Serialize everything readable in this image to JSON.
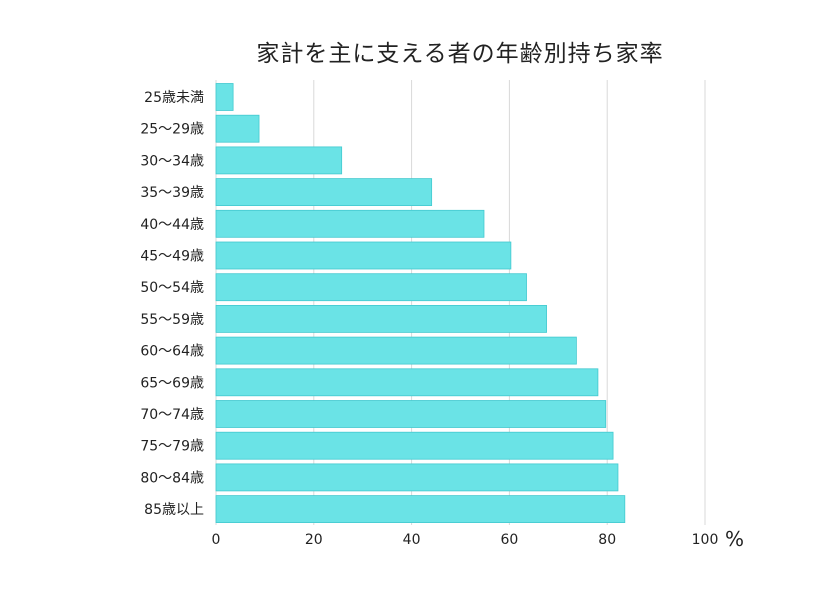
{
  "chart_data": {
    "type": "bar",
    "orientation": "horizontal",
    "title": "家計を主に支える者の年齢別持ち家率",
    "unit": "%",
    "categories": [
      "25歳未満",
      "25〜29歳",
      "30〜34歳",
      "35〜39歳",
      "40〜44歳",
      "45〜49歳",
      "50〜54歳",
      "55〜59歳",
      "60〜64歳",
      "65〜69歳",
      "70〜74歳",
      "75〜79歳",
      "80〜84歳",
      "85歳以上"
    ],
    "values": [
      3.5,
      8.8,
      25.7,
      44.1,
      54.8,
      60.3,
      63.5,
      67.6,
      73.7,
      78.1,
      79.7,
      81.2,
      82.2,
      83.6
    ],
    "xlim": [
      0,
      100
    ],
    "xticks": [
      "0",
      "20",
      "40",
      "60",
      "80",
      "100"
    ],
    "xlabel": "",
    "ylabel": "",
    "grid": true,
    "bar_color": "#6ae3e6",
    "bar_edge_color": "#43c9cf",
    "grid_color": "#d9d9d9"
  }
}
